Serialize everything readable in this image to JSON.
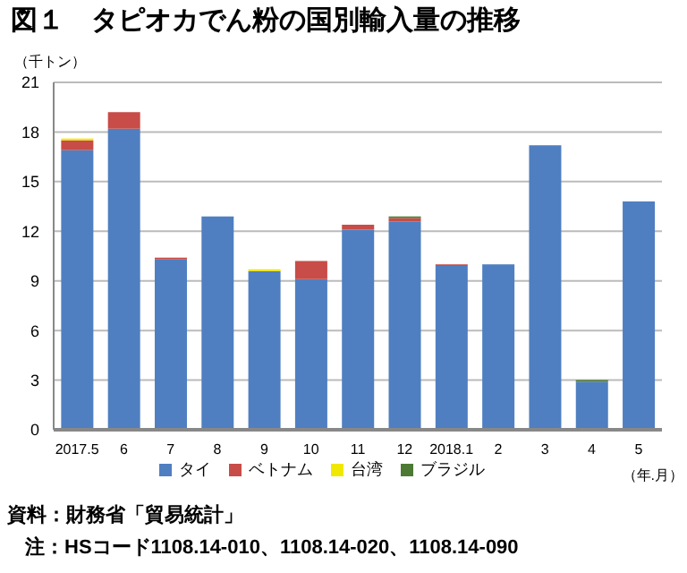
{
  "chart_data": {
    "type": "bar",
    "stacked": true,
    "title": "図１　タピオカでん粉の国別輸入量の推移",
    "ylabel": "（千トン）",
    "categories": [
      "2017.5",
      "6",
      "7",
      "8",
      "9",
      "10",
      "11",
      "12",
      "2018.1",
      "2",
      "3",
      "4",
      "5"
    ],
    "series": [
      {
        "name": "タイ",
        "color": "#4f7fc1",
        "values": [
          16.9,
          18.2,
          10.3,
          12.9,
          9.6,
          9.1,
          12.1,
          12.6,
          9.9,
          10.0,
          17.2,
          2.9,
          13.8
        ]
      },
      {
        "name": "ベトナム",
        "color": "#c84c47",
        "values": [
          0.6,
          1.0,
          0.1,
          null,
          null,
          1.1,
          0.3,
          0.2,
          0.1,
          null,
          null,
          null,
          null
        ]
      },
      {
        "name": "台湾",
        "color": "#f0e800",
        "values": [
          0.1,
          null,
          null,
          null,
          0.1,
          null,
          null,
          null,
          null,
          null,
          null,
          null,
          null
        ]
      },
      {
        "name": "ブラジル",
        "color": "#4c7a34",
        "values": [
          null,
          null,
          null,
          null,
          null,
          null,
          null,
          0.1,
          null,
          null,
          null,
          0.1,
          null
        ]
      }
    ],
    "ylim": [
      0,
      21
    ],
    "yticks": [
      0,
      3,
      6,
      9,
      12,
      15,
      18,
      21
    ],
    "grid": "y",
    "legend": "bottom",
    "annotations": [
      "（年.月）",
      "資料：財務省「貿易統計」",
      "注：HSコード1108.14-010、1108.14-020、1108.14-090"
    ]
  }
}
